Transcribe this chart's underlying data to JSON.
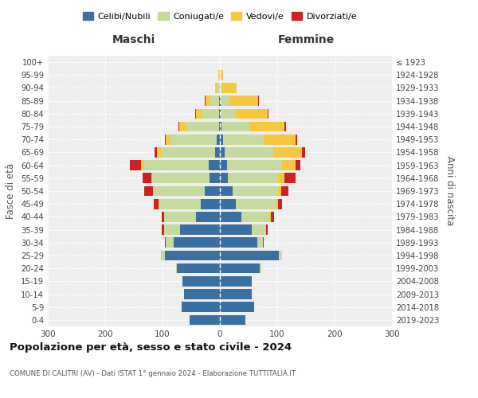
{
  "age_groups": [
    "0-4",
    "5-9",
    "10-14",
    "15-19",
    "20-24",
    "25-29",
    "30-34",
    "35-39",
    "40-44",
    "45-49",
    "50-54",
    "55-59",
    "60-64",
    "65-69",
    "70-74",
    "75-79",
    "80-84",
    "85-89",
    "90-94",
    "95-99",
    "100+"
  ],
  "birth_years": [
    "2019-2023",
    "2014-2018",
    "2009-2013",
    "2004-2008",
    "1999-2003",
    "1994-1998",
    "1989-1993",
    "1984-1988",
    "1979-1983",
    "1974-1978",
    "1969-1973",
    "1964-1968",
    "1959-1963",
    "1954-1958",
    "1949-1953",
    "1944-1948",
    "1939-1943",
    "1934-1938",
    "1929-1933",
    "1924-1928",
    "≤ 1923"
  ],
  "males": {
    "celibi": [
      53,
      67,
      63,
      65,
      75,
      96,
      80,
      69,
      42,
      34,
      27,
      18,
      19,
      8,
      5,
      2,
      1,
      1,
      0,
      0,
      0
    ],
    "coniugati": [
      0,
      0,
      0,
      0,
      2,
      7,
      15,
      28,
      55,
      72,
      88,
      100,
      115,
      95,
      81,
      57,
      30,
      16,
      5,
      2,
      0
    ],
    "vedovi": [
      0,
      0,
      0,
      0,
      0,
      0,
      0,
      0,
      0,
      1,
      2,
      2,
      3,
      7,
      8,
      12,
      10,
      8,
      3,
      1,
      0
    ],
    "divorziati": [
      0,
      0,
      0,
      0,
      0,
      0,
      1,
      4,
      5,
      8,
      15,
      15,
      20,
      4,
      2,
      1,
      2,
      1,
      0,
      0,
      0
    ]
  },
  "females": {
    "nubili": [
      44,
      60,
      55,
      56,
      70,
      103,
      65,
      55,
      38,
      28,
      22,
      14,
      12,
      8,
      5,
      3,
      1,
      1,
      0,
      0,
      0
    ],
    "coniugate": [
      0,
      0,
      0,
      0,
      2,
      6,
      10,
      25,
      50,
      70,
      80,
      88,
      95,
      85,
      72,
      50,
      27,
      16,
      4,
      1,
      0
    ],
    "vedove": [
      0,
      0,
      0,
      0,
      0,
      0,
      0,
      1,
      1,
      3,
      5,
      10,
      25,
      50,
      55,
      60,
      55,
      50,
      25,
      5,
      0
    ],
    "divorziate": [
      0,
      0,
      0,
      0,
      0,
      0,
      1,
      3,
      5,
      8,
      12,
      20,
      8,
      5,
      3,
      2,
      2,
      1,
      0,
      0,
      0
    ]
  },
  "colors": {
    "celibi": "#3B6FA0",
    "coniugati": "#C5D9A0",
    "vedovi": "#F5C842",
    "divorziati": "#CC2222"
  },
  "xlim": 300,
  "title": "Popolazione per età, sesso e stato civile - 2024",
  "subtitle": "COMUNE DI CALITRI (AV) - Dati ISTAT 1° gennaio 2024 - Elaborazione TUTTITALIA.IT",
  "legend_labels": [
    "Celibi/Nubili",
    "Coniugati/e",
    "Vedovi/e",
    "Divorziati/e"
  ],
  "ylabel_left": "Fasce di età",
  "ylabel_right": "Anni di nascita",
  "xlabel_left": "Maschi",
  "xlabel_right": "Femmine"
}
